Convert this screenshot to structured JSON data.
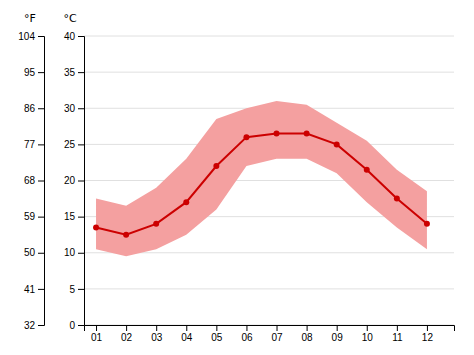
{
  "chart_data": {
    "type": "line",
    "x": [
      1,
      2,
      3,
      4,
      5,
      6,
      7,
      8,
      9,
      10,
      11,
      12
    ],
    "xlim": [
      0.6,
      12.9
    ],
    "xticks": [
      {
        "value": 1,
        "label": "01"
      },
      {
        "value": 2,
        "label": "02"
      },
      {
        "value": 3,
        "label": "03"
      },
      {
        "value": 4,
        "label": "04"
      },
      {
        "value": 5,
        "label": "05"
      },
      {
        "value": 6,
        "label": "06"
      },
      {
        "value": 7,
        "label": "07"
      },
      {
        "value": 8,
        "label": "08"
      },
      {
        "value": 9,
        "label": "09"
      },
      {
        "value": 10,
        "label": "10"
      },
      {
        "value": 11,
        "label": "11"
      },
      {
        "value": 12,
        "label": "12"
      }
    ],
    "ylim": [
      0,
      40
    ],
    "yticks": [
      0,
      5,
      10,
      15,
      20,
      25,
      30,
      35,
      40
    ],
    "ylabel": "°C",
    "y2lim": [
      32,
      104
    ],
    "y2ticks": [
      32,
      41,
      50,
      59,
      68,
      77,
      86,
      95,
      104
    ],
    "y2label": "°F",
    "grid": true,
    "series": [
      {
        "type": "band",
        "color": "#f4a0a0",
        "lower": [
          10.5,
          9.5,
          10.5,
          12.5,
          16.0,
          22.0,
          23.0,
          23.0,
          21.0,
          17.0,
          13.5,
          10.5
        ],
        "upper": [
          17.5,
          16.5,
          19.0,
          23.0,
          28.5,
          30.0,
          31.0,
          30.5,
          28.0,
          25.5,
          21.5,
          18.5
        ]
      },
      {
        "type": "line",
        "color": "#cc0000",
        "marker": "circle",
        "values": [
          13.5,
          12.5,
          14.0,
          17.0,
          22.0,
          26.0,
          26.5,
          26.5,
          25.0,
          21.5,
          17.5,
          14.0
        ]
      }
    ]
  }
}
